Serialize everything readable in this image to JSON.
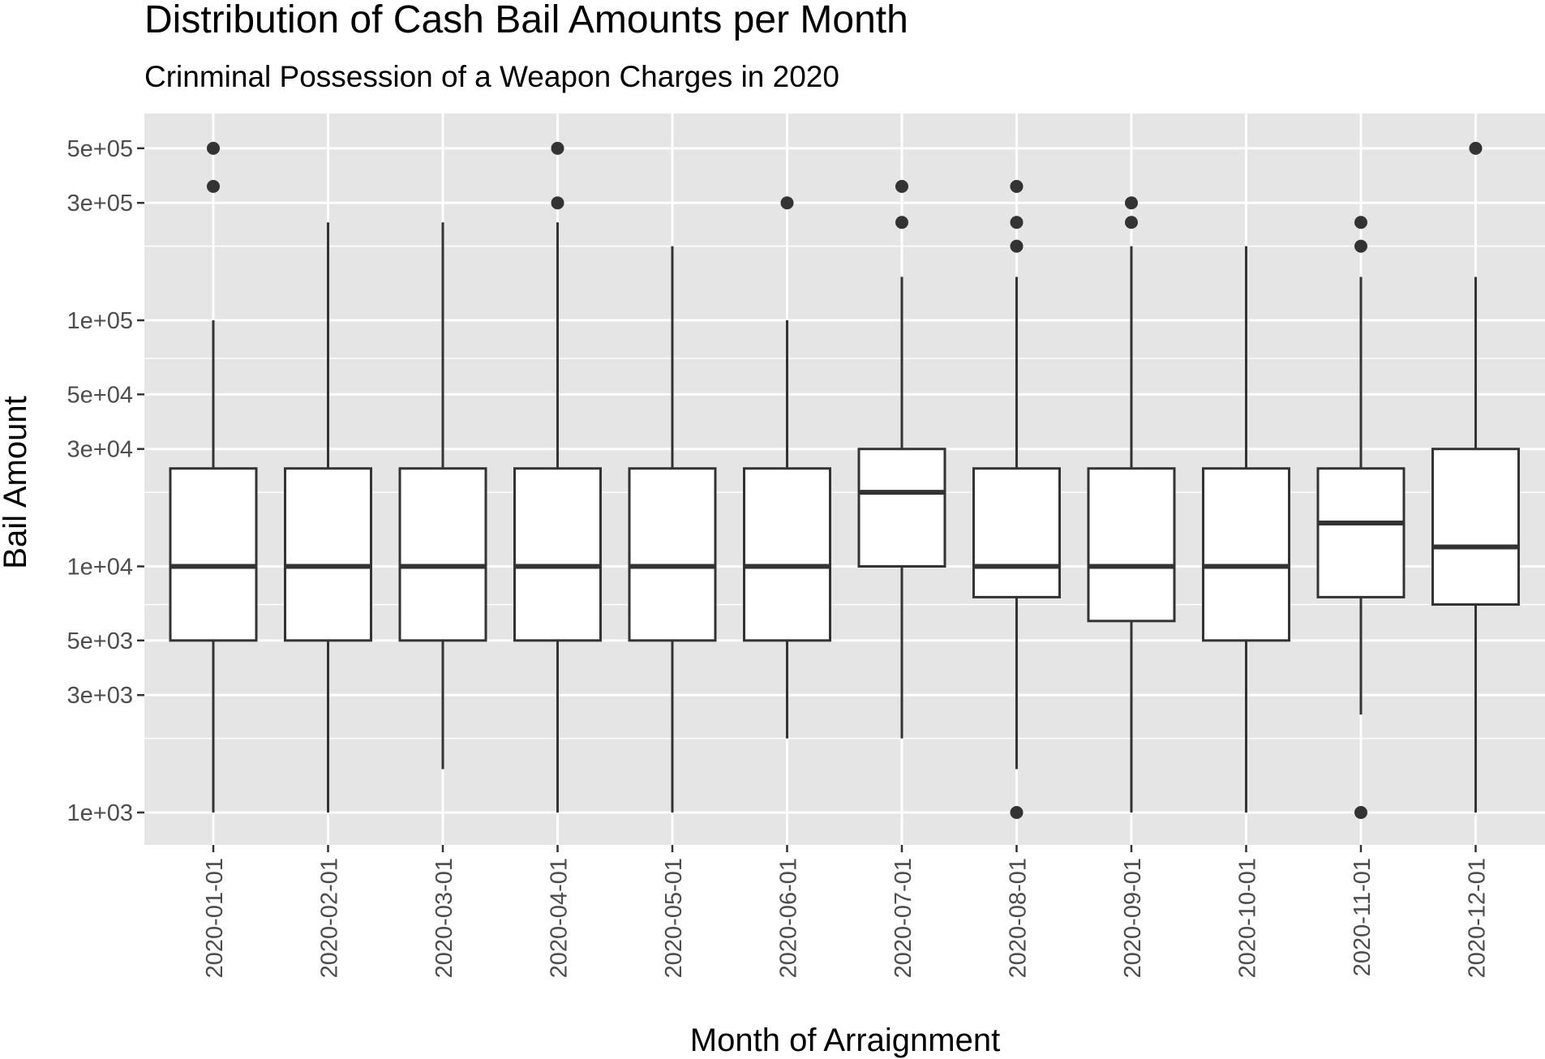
{
  "chart_data": {
    "type": "box",
    "title": "Distribution of Cash Bail Amounts per Month",
    "subtitle": "Crinminal Possession of a Weapon Charges in 2020",
    "xlabel": "Month of Arraignment",
    "ylabel": "Bail Amount",
    "y_scale": "log10",
    "ylim": [
      780,
      650000
    ],
    "grid": true,
    "colors": {
      "panel": "#e5e5e5",
      "gridline": "#ffffff",
      "box_fill": "#ffffff",
      "stroke": "#333333",
      "tick_text": "#4d4d4d"
    },
    "y_ticks": [
      {
        "value": 1000,
        "label": "1e+03"
      },
      {
        "value": 3000,
        "label": "3e+03"
      },
      {
        "value": 5000,
        "label": "5e+03"
      },
      {
        "value": 10000,
        "label": "1e+04"
      },
      {
        "value": 30000,
        "label": "3e+04"
      },
      {
        "value": 50000,
        "label": "5e+04"
      },
      {
        "value": 100000,
        "label": "1e+05"
      },
      {
        "value": 300000,
        "label": "3e+05"
      },
      {
        "value": 500000,
        "label": "5e+05"
      }
    ],
    "y_minor_gridlines": [
      2000,
      7000,
      20000,
      70000,
      200000,
      700000
    ],
    "categories": [
      "2020-01-01",
      "2020-02-01",
      "2020-03-01",
      "2020-04-01",
      "2020-05-01",
      "2020-06-01",
      "2020-07-01",
      "2020-08-01",
      "2020-09-01",
      "2020-10-01",
      "2020-11-01",
      "2020-12-01"
    ],
    "boxes": [
      {
        "min": 1000,
        "q1": 5000,
        "median": 10000,
        "q3": 25000,
        "max": 100000,
        "outliers": [
          350000,
          500000
        ]
      },
      {
        "min": 1000,
        "q1": 5000,
        "median": 10000,
        "q3": 25000,
        "max": 250000,
        "outliers": []
      },
      {
        "min": 1500,
        "q1": 5000,
        "median": 10000,
        "q3": 25000,
        "max": 250000,
        "outliers": []
      },
      {
        "min": 1000,
        "q1": 5000,
        "median": 10000,
        "q3": 25000,
        "max": 250000,
        "outliers": [
          300000,
          500000
        ]
      },
      {
        "min": 1000,
        "q1": 5000,
        "median": 10000,
        "q3": 25000,
        "max": 200000,
        "outliers": []
      },
      {
        "min": 2000,
        "q1": 5000,
        "median": 10000,
        "q3": 25000,
        "max": 100000,
        "outliers": [
          300000
        ]
      },
      {
        "min": 2000,
        "q1": 10000,
        "median": 20000,
        "q3": 30000,
        "max": 150000,
        "outliers": [
          250000,
          350000
        ]
      },
      {
        "min": 1500,
        "q1": 7500,
        "median": 10000,
        "q3": 25000,
        "max": 150000,
        "outliers": [
          1000,
          200000,
          250000,
          350000
        ]
      },
      {
        "min": 1000,
        "q1": 6000,
        "median": 10000,
        "q3": 25000,
        "max": 200000,
        "outliers": [
          250000,
          300000
        ]
      },
      {
        "min": 1000,
        "q1": 5000,
        "median": 10000,
        "q3": 25000,
        "max": 200000,
        "outliers": []
      },
      {
        "min": 2500,
        "q1": 7500,
        "median": 15000,
        "q3": 25000,
        "max": 150000,
        "outliers": [
          1000,
          200000,
          250000
        ]
      },
      {
        "min": 1000,
        "q1": 7000,
        "median": 12000,
        "q3": 30000,
        "max": 150000,
        "outliers": [
          500000
        ]
      }
    ]
  }
}
